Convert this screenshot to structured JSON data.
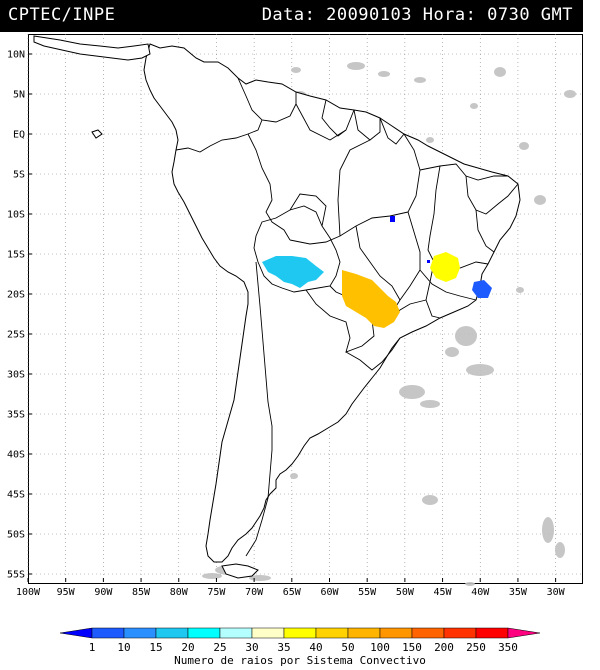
{
  "header": {
    "agency": "CPTEC/INPE",
    "datetime": "Data: 20090103 Hora: 0730 GMT"
  },
  "map": {
    "lat_labels": [
      "10N",
      "5N",
      "EQ",
      "5S",
      "10S",
      "15S",
      "20S",
      "25S",
      "30S",
      "35S",
      "40S",
      "45S",
      "50S",
      "55S"
    ],
    "lat_values": [
      10,
      5,
      0,
      -5,
      -10,
      -15,
      -20,
      -25,
      -30,
      -35,
      -40,
      -45,
      -50,
      -55
    ],
    "lon_labels": [
      "100W",
      "95W",
      "90W",
      "85W",
      "80W",
      "75W",
      "70W",
      "65W",
      "60W",
      "55W",
      "50W",
      "45W",
      "40W",
      "35W",
      "30W"
    ],
    "lon_values": [
      -100,
      -95,
      -90,
      -85,
      -80,
      -75,
      -70,
      -65,
      -60,
      -55,
      -50,
      -45,
      -40,
      -35,
      -30
    ],
    "lon_range": [
      -100,
      -26.5
    ],
    "lat_range": [
      -56,
      12.5
    ],
    "grid": "dotted",
    "land_color": "#ffffff",
    "coast_color": "#000000",
    "cloud_color": "#c0c0c0"
  },
  "colorbar": {
    "title": "Numero de raios por Sistema Convectivo",
    "labels": [
      "1",
      "10",
      "15",
      "20",
      "25",
      "30",
      "35",
      "40",
      "50",
      "100",
      "150",
      "200",
      "250",
      "350"
    ],
    "colors": [
      "#0000ff",
      "#1e5bff",
      "#2a8fff",
      "#1ec8f0",
      "#00ffff",
      "#b4ffff",
      "#ffffc8",
      "#ffff00",
      "#ffd200",
      "#ffb400",
      "#ff9600",
      "#ff6400",
      "#ff3200",
      "#ff0000",
      "#ff0080"
    ]
  },
  "systems": [
    {
      "name": "system-blue-small",
      "color": "#0000ff"
    },
    {
      "name": "system-blue-east",
      "color": "#1e5bff"
    },
    {
      "name": "system-cyan",
      "color": "#1ec8f0"
    },
    {
      "name": "system-orange",
      "color": "#ffc000"
    },
    {
      "name": "system-yellow",
      "color": "#ffff00"
    }
  ]
}
